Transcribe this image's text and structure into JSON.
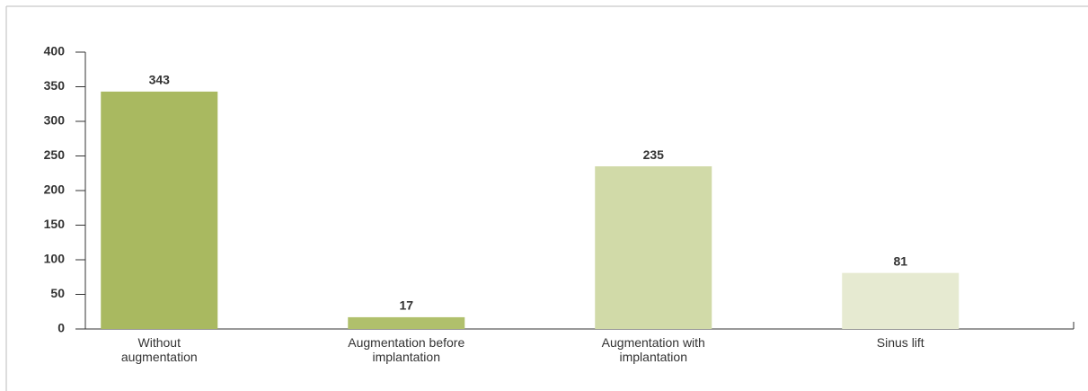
{
  "chart_data": {
    "type": "bar",
    "categories": [
      "Without augmentation",
      "Augmentation before implantation",
      "Augmentation with implantation",
      "Sinus lift"
    ],
    "values": [
      343,
      17,
      235,
      81
    ],
    "colors": [
      "#a9b960",
      "#b0c06c",
      "#d1daa8",
      "#e6ead1"
    ],
    "ylim": [
      0,
      400
    ],
    "yticks": [
      0,
      50,
      100,
      150,
      200,
      250,
      300,
      350,
      400
    ]
  }
}
